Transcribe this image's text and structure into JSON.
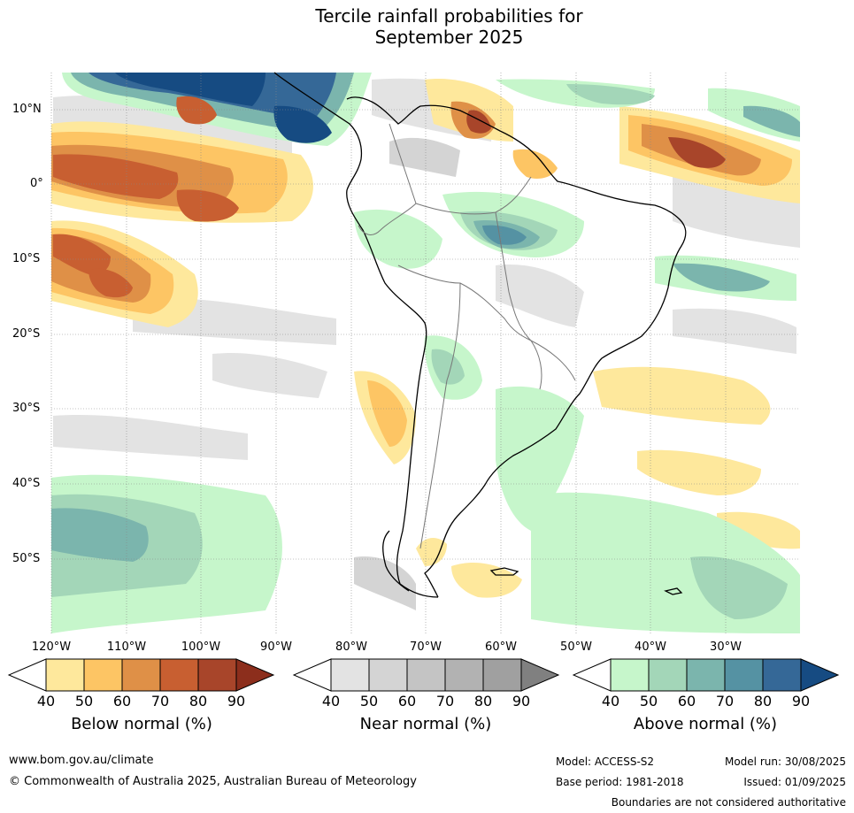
{
  "title_line1": "Tercile rainfall probabilities for",
  "title_line2": "September 2025",
  "lat_labels": [
    "10°N",
    "0°",
    "10°S",
    "20°S",
    "30°S",
    "40°S",
    "50°S"
  ],
  "lon_labels": [
    "120°W",
    "110°W",
    "100°W",
    "90°W",
    "80°W",
    "70°W",
    "60°W",
    "50°W",
    "40°W",
    "30°W"
  ],
  "colorbars": [
    {
      "title": "Below normal (%)",
      "ticks": [
        "40",
        "50",
        "60",
        "70",
        "80",
        "90"
      ],
      "colors": [
        "#ffffff",
        "#fee89c",
        "#fdc564",
        "#df9047",
        "#c85f31",
        "#a8452a",
        "#8c2e1c"
      ]
    },
    {
      "title": "Near normal (%)",
      "ticks": [
        "40",
        "50",
        "60",
        "70",
        "80",
        "90"
      ],
      "colors": [
        "#ffffff",
        "#e3e3e3",
        "#d4d4d4",
        "#c4c4c4",
        "#b2b2b2",
        "#a0a0a0",
        "#808080"
      ]
    },
    {
      "title": "Above normal (%)",
      "ticks": [
        "40",
        "50",
        "60",
        "70",
        "80",
        "90"
      ],
      "colors": [
        "#ffffff",
        "#c6f6cb",
        "#a3d6b8",
        "#7bb5ad",
        "#5592a3",
        "#356897",
        "#164b82"
      ]
    }
  ],
  "footer": {
    "url": "www.bom.gov.au/climate",
    "copyright": "© Commonwealth of Australia 2025, Australian Bureau of Meteorology",
    "model": "Model: ACCESS-S2",
    "base_period": "Base period: 1981-2018",
    "model_run": "Model run: 30/08/2025",
    "issued": "Issued: 01/09/2025",
    "disclaimer": "Boundaries are not considered authoritative"
  }
}
